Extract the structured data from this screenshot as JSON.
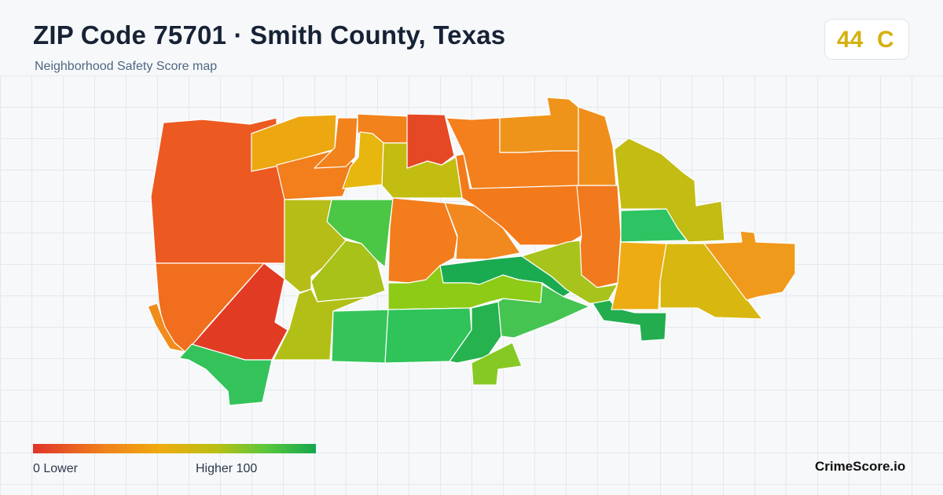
{
  "header": {
    "title": "ZIP Code 75701 · Smith County, Texas",
    "subtitle": "Neighborhood Safety Score map"
  },
  "score": {
    "value": "44",
    "grade": "C",
    "color": "#d4b10e"
  },
  "legend": {
    "min_label": "0  Lower",
    "max_label": "Higher  100",
    "low_color": "#e0342a",
    "high_color": "#14a74f"
  },
  "brand": "CrimeScore.io",
  "map_regions": [
    {
      "name": "northwest-tract",
      "color": "#ec5a22"
    },
    {
      "name": "west-tract",
      "color": "#f06e1e"
    },
    {
      "name": "west-edge-sliver",
      "color": "#f08c1c"
    },
    {
      "name": "southwest-red-tract",
      "color": "#e23b24"
    },
    {
      "name": "southwest-green-tract",
      "color": "#34c35a"
    },
    {
      "name": "north-orange-strip",
      "color": "#eca711"
    },
    {
      "name": "north-orange-band",
      "color": "#f27e1c"
    },
    {
      "name": "north-small-orange-1",
      "color": "#f2821c"
    },
    {
      "name": "north-small-orange-2",
      "color": "#f2821c"
    },
    {
      "name": "north-yellow-tract",
      "color": "#e7b60f"
    },
    {
      "name": "north-red-tract",
      "color": "#e54824"
    },
    {
      "name": "central-olive-tract",
      "color": "#c3bd12"
    },
    {
      "name": "central-green-tract",
      "color": "#4cc645"
    },
    {
      "name": "central-olive-west",
      "color": "#b7bd17"
    },
    {
      "name": "central-olive-south",
      "color": "#a8c219"
    },
    {
      "name": "central-orange-west",
      "color": "#f37c1c"
    },
    {
      "name": "central-orange-east",
      "color": "#f28820"
    },
    {
      "name": "northeast-orange-block",
      "color": "#f37a1b"
    },
    {
      "name": "northeast-orange-top",
      "color": "#f3801c"
    },
    {
      "name": "northeast-orange-column",
      "color": "#ef941a"
    },
    {
      "name": "east-orange-tract",
      "color": "#f07a1d"
    },
    {
      "name": "east-orange-column",
      "color": "#f08e1b"
    },
    {
      "name": "central-darkgreen-tract",
      "color": "#1aab51"
    },
    {
      "name": "central-lime-band",
      "color": "#8dcb17"
    },
    {
      "name": "east-olive-tract",
      "color": "#a8c31b"
    },
    {
      "name": "south-olive-tract",
      "color": "#b2bf17"
    },
    {
      "name": "south-green-1",
      "color": "#35c45a"
    },
    {
      "name": "south-green-2",
      "color": "#2fc35a"
    },
    {
      "name": "south-darkgreen",
      "color": "#26b24f"
    },
    {
      "name": "south-lime-tail",
      "color": "#87c924"
    },
    {
      "name": "southeast-green",
      "color": "#46c451"
    },
    {
      "name": "northeast-olive",
      "color": "#c3bc12"
    },
    {
      "name": "east-green-block",
      "color": "#2ec463"
    },
    {
      "name": "east-darkgreen-tail",
      "color": "#23ad4f"
    },
    {
      "name": "east-gold-tract",
      "color": "#edad12"
    },
    {
      "name": "east-yellow-tract",
      "color": "#d8b710"
    },
    {
      "name": "far-east-orange",
      "color": "#f09a1c"
    }
  ]
}
